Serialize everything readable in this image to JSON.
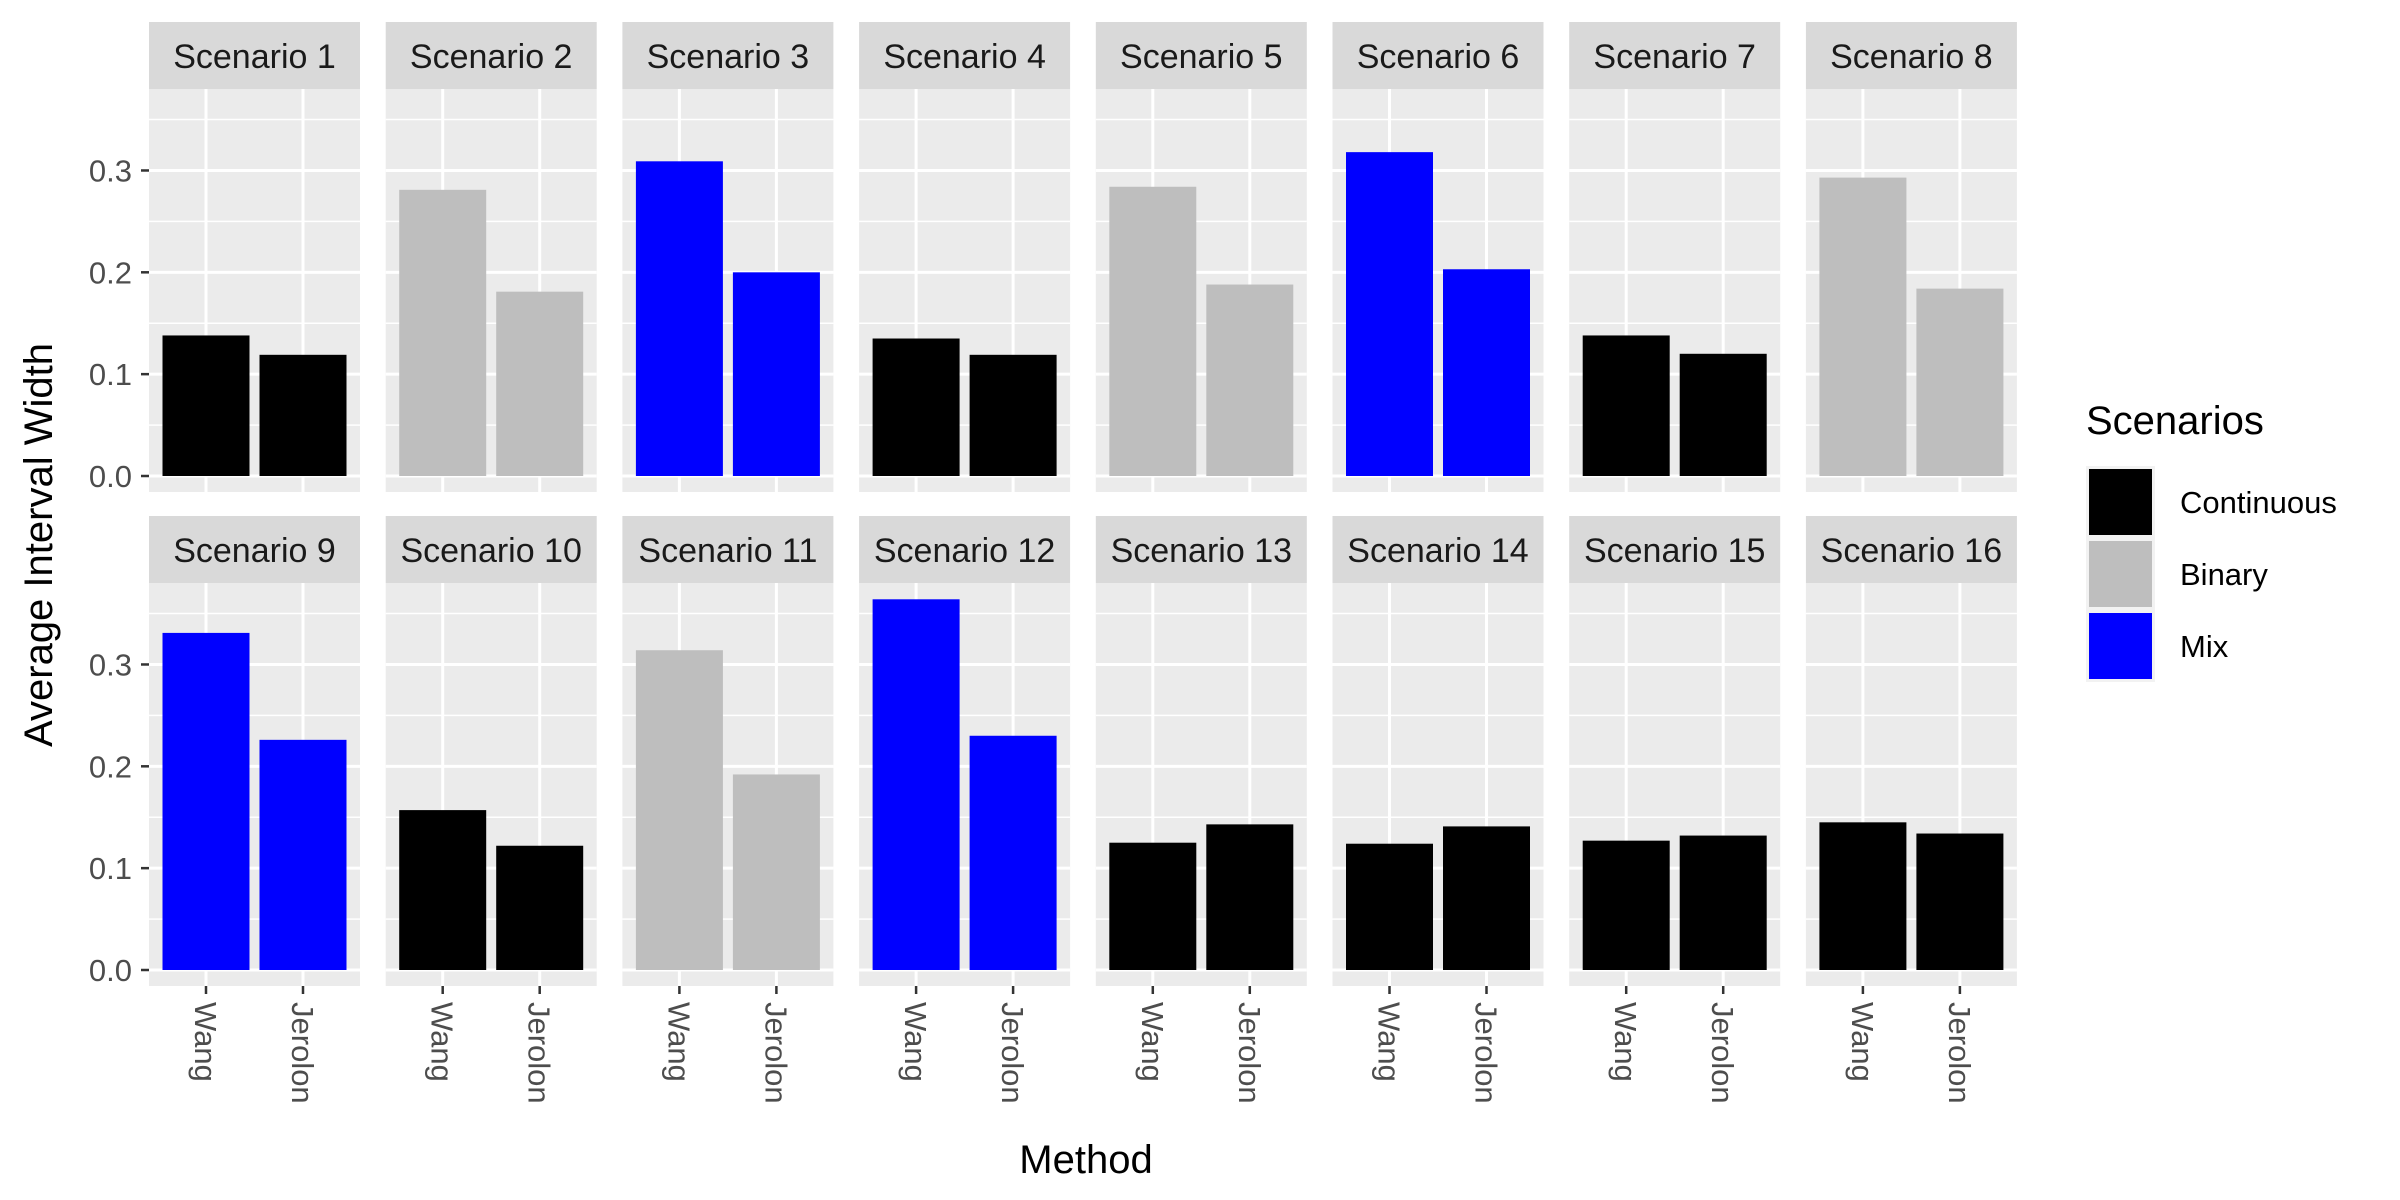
{
  "chart_data": {
    "type": "bar",
    "facet": "wrap",
    "xlabel": "Method",
    "ylabel": "Average Interval Width",
    "ylim": [
      0,
      0.38
    ],
    "yticks": [
      0.0,
      0.1,
      0.2,
      0.3
    ],
    "ytick_labels": [
      "0.0",
      "0.1",
      "0.2",
      "0.3"
    ],
    "categories": [
      "Wang",
      "Jerolon"
    ],
    "legend": {
      "title": "Scenarios",
      "position": "right",
      "entries": [
        {
          "name": "Continuous",
          "color": "#000000"
        },
        {
          "name": "Binary",
          "color": "#bebebe"
        },
        {
          "name": "Mix",
          "color": "#0000ff"
        }
      ]
    },
    "panels": [
      {
        "title": "Scenario 1",
        "group": "Continuous",
        "values": [
          0.138,
          0.119
        ]
      },
      {
        "title": "Scenario 2",
        "group": "Binary",
        "values": [
          0.281,
          0.181
        ]
      },
      {
        "title": "Scenario 3",
        "group": "Mix",
        "values": [
          0.309,
          0.2
        ]
      },
      {
        "title": "Scenario 4",
        "group": "Continuous",
        "values": [
          0.135,
          0.119
        ]
      },
      {
        "title": "Scenario 5",
        "group": "Binary",
        "values": [
          0.284,
          0.188
        ]
      },
      {
        "title": "Scenario 6",
        "group": "Mix",
        "values": [
          0.318,
          0.203
        ]
      },
      {
        "title": "Scenario 7",
        "group": "Continuous",
        "values": [
          0.138,
          0.12
        ]
      },
      {
        "title": "Scenario 8",
        "group": "Binary",
        "values": [
          0.293,
          0.184
        ]
      },
      {
        "title": "Scenario 9",
        "group": "Mix",
        "values": [
          0.331,
          0.226
        ]
      },
      {
        "title": "Scenario 10",
        "group": "Continuous",
        "values": [
          0.157,
          0.122
        ]
      },
      {
        "title": "Scenario 11",
        "group": "Binary",
        "values": [
          0.314,
          0.192
        ]
      },
      {
        "title": "Scenario 12",
        "group": "Mix",
        "values": [
          0.364,
          0.23
        ]
      },
      {
        "title": "Scenario 13",
        "group": "Continuous",
        "values": [
          0.125,
          0.143
        ]
      },
      {
        "title": "Scenario 14",
        "group": "Continuous",
        "values": [
          0.124,
          0.141
        ]
      },
      {
        "title": "Scenario 15",
        "group": "Continuous",
        "values": [
          0.127,
          0.132
        ]
      },
      {
        "title": "Scenario 16",
        "group": "Continuous",
        "values": [
          0.145,
          0.134
        ]
      }
    ]
  }
}
